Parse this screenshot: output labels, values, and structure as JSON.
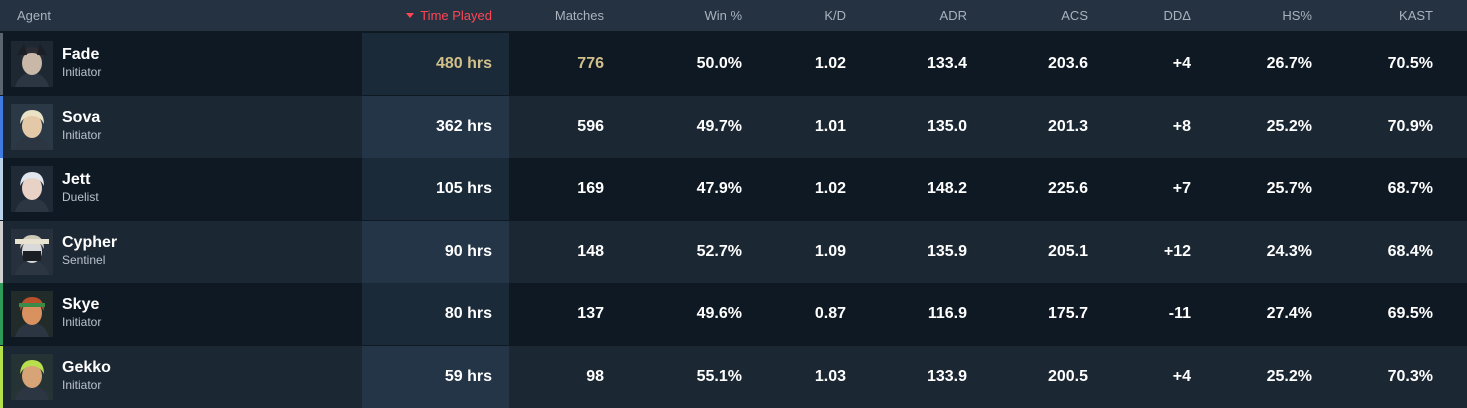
{
  "columns": {
    "agent": "Agent",
    "time_played": "Time Played",
    "matches": "Matches",
    "win_pct": "Win %",
    "kd": "K/D",
    "adr": "ADR",
    "acs": "ACS",
    "dd": "DDΔ",
    "hs": "HS%",
    "kast": "KAST"
  },
  "sorted_column": "time_played",
  "colors": {
    "header_bg": "#243242",
    "row_odd": "#0f1923",
    "row_even": "#1b2733",
    "highlight_gold": "#d1c08a",
    "sort_red": "#ff4655"
  },
  "rows": [
    {
      "name": "Fade",
      "role": "Initiator",
      "time_played": "480 hrs",
      "matches": "776",
      "win_pct": "50.0%",
      "kd": "1.02",
      "adr": "133.4",
      "acs": "203.6",
      "dd": "+4",
      "hs": "26.7%",
      "kast": "70.5%",
      "accent": "#5a6570",
      "avatar_icon": "fade-avatar-icon"
    },
    {
      "name": "Sova",
      "role": "Initiator",
      "time_played": "362 hrs",
      "matches": "596",
      "win_pct": "49.7%",
      "kd": "1.01",
      "adr": "135.0",
      "acs": "201.3",
      "dd": "+8",
      "hs": "25.2%",
      "kast": "70.9%",
      "accent": "#3f7be0",
      "avatar_icon": "sova-avatar-icon"
    },
    {
      "name": "Jett",
      "role": "Duelist",
      "time_played": "105 hrs",
      "matches": "169",
      "win_pct": "47.9%",
      "kd": "1.02",
      "adr": "148.2",
      "acs": "225.6",
      "dd": "+7",
      "hs": "25.7%",
      "kast": "68.7%",
      "accent": "#b9d2ea",
      "avatar_icon": "jett-avatar-icon"
    },
    {
      "name": "Cypher",
      "role": "Sentinel",
      "time_played": "90 hrs",
      "matches": "148",
      "win_pct": "52.7%",
      "kd": "1.09",
      "adr": "135.9",
      "acs": "205.1",
      "dd": "+12",
      "hs": "24.3%",
      "kast": "68.4%",
      "accent": "#cfcfcf",
      "avatar_icon": "cypher-avatar-icon"
    },
    {
      "name": "Skye",
      "role": "Initiator",
      "time_played": "80 hrs",
      "matches": "137",
      "win_pct": "49.6%",
      "kd": "0.87",
      "adr": "116.9",
      "acs": "175.7",
      "dd": "-11",
      "hs": "27.4%",
      "kast": "69.5%",
      "accent": "#2e9a5a",
      "avatar_icon": "skye-avatar-icon"
    },
    {
      "name": "Gekko",
      "role": "Initiator",
      "time_played": "59 hrs",
      "matches": "98",
      "win_pct": "55.1%",
      "kd": "1.03",
      "adr": "133.9",
      "acs": "200.5",
      "dd": "+4",
      "hs": "25.2%",
      "kast": "70.3%",
      "accent": "#b5e04a",
      "avatar_icon": "gekko-avatar-icon"
    }
  ]
}
